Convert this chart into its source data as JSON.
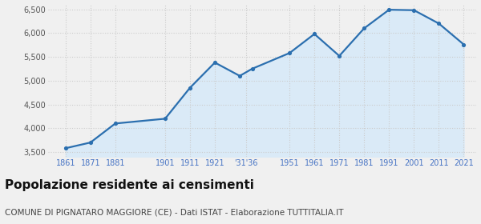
{
  "years": [
    1861,
    1871,
    1881,
    1901,
    1911,
    1921,
    1931,
    1936,
    1951,
    1961,
    1971,
    1981,
    1991,
    2001,
    2011,
    2021
  ],
  "population": [
    3580,
    3700,
    4100,
    4200,
    4850,
    5380,
    5100,
    5250,
    5580,
    5980,
    5520,
    6100,
    6490,
    6480,
    6200,
    5760
  ],
  "line_color": "#2b6faf",
  "fill_color": "#daeaf7",
  "marker_color": "#2b6faf",
  "background_color": "#f0f0f0",
  "plot_bg_color": "#ffffff",
  "ylim": [
    3400,
    6600
  ],
  "yticks": [
    3500,
    4000,
    4500,
    5000,
    5500,
    6000,
    6500
  ],
  "ytick_labels": [
    "3,500",
    "4,000",
    "4,500",
    "5,000",
    "5,500",
    "6,000",
    "6,500"
  ],
  "x_tick_positions": [
    1861,
    1871,
    1881,
    1901,
    1911,
    1921,
    1933.5,
    1951,
    1961,
    1971,
    1981,
    1991,
    2001,
    2011,
    2021
  ],
  "x_tick_labels": [
    "1861",
    "1871",
    "1881",
    "1901",
    "1911",
    "1921",
    "'31'36",
    "1951",
    "1961",
    "1971",
    "1981",
    "1991",
    "2001",
    "2011",
    "2021"
  ],
  "tick_color": "#4472c4",
  "grid_color": "#cccccc",
  "title": "Popolazione residente ai censimenti",
  "subtitle": "COMUNE DI PIGNATARO MAGGIORE (CE) - Dati ISTAT - Elaborazione TUTTITALIA.IT",
  "title_fontsize": 11,
  "subtitle_fontsize": 7.5,
  "xlim_left": 1854,
  "xlim_right": 2026
}
